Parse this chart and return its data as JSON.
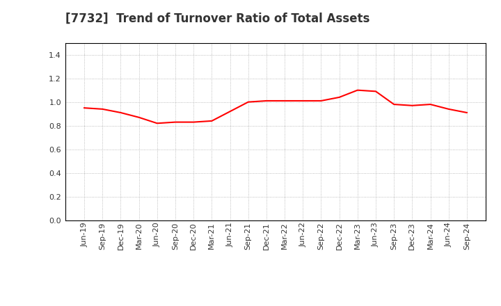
{
  "title": "[7732]  Trend of Turnover Ratio of Total Assets",
  "x_labels": [
    "Jun-19",
    "Sep-19",
    "Dec-19",
    "Mar-20",
    "Jun-20",
    "Sep-20",
    "Dec-20",
    "Mar-21",
    "Jun-21",
    "Sep-21",
    "Dec-21",
    "Mar-22",
    "Jun-22",
    "Sep-22",
    "Dec-22",
    "Mar-23",
    "Jun-23",
    "Sep-23",
    "Dec-23",
    "Mar-24",
    "Jun-24",
    "Sep-24"
  ],
  "values": [
    0.95,
    0.94,
    0.91,
    0.87,
    0.82,
    0.83,
    0.83,
    0.84,
    0.92,
    1.0,
    1.01,
    1.01,
    1.01,
    1.01,
    1.04,
    1.1,
    1.09,
    0.98,
    0.97,
    0.98,
    0.94,
    0.91
  ],
  "line_color": "#FF0000",
  "line_width": 1.5,
  "ylim": [
    0.0,
    1.5
  ],
  "yticks": [
    0.0,
    0.2,
    0.4,
    0.6,
    0.8,
    1.0,
    1.2,
    1.4
  ],
  "grid_color": "#aaaaaa",
  "grid_style": "dotted",
  "bg_color": "#ffffff",
  "title_fontsize": 12,
  "tick_fontsize": 8,
  "title_color": "#333333"
}
